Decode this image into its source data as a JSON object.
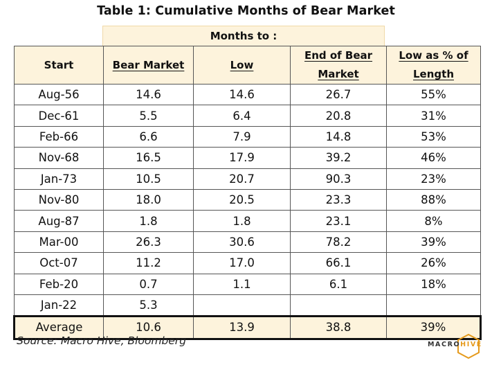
{
  "title": "Table 1:  Cumulative Months of Bear Market",
  "group_header": "Months to :",
  "columns": [
    {
      "line1": "Start",
      "line2": "",
      "underline": false
    },
    {
      "line1": "Bear Market",
      "line2": "",
      "underline": true
    },
    {
      "line1": "Low",
      "line2": "",
      "underline": true
    },
    {
      "line1": "End of Bear",
      "line2": "Market",
      "underline": true
    },
    {
      "line1": "Low as % of",
      "line2": "Length",
      "underline": true
    }
  ],
  "rows": [
    [
      "Aug-56",
      "14.6",
      "14.6",
      "26.7",
      "55%"
    ],
    [
      "Dec-61",
      "5.5",
      "6.4",
      "20.8",
      "31%"
    ],
    [
      "Feb-66",
      "6.6",
      "7.9",
      "14.8",
      "53%"
    ],
    [
      "Nov-68",
      "16.5",
      "17.9",
      "39.2",
      "46%"
    ],
    [
      "Jan-73",
      "10.5",
      "20.7",
      "90.3",
      "23%"
    ],
    [
      "Nov-80",
      "18.0",
      "20.5",
      "23.3",
      "88%"
    ],
    [
      "Aug-87",
      "1.8",
      "1.8",
      "23.1",
      "8%"
    ],
    [
      "Mar-00",
      "26.3",
      "30.6",
      "78.2",
      "39%"
    ],
    [
      "Oct-07",
      "11.2",
      "17.0",
      "66.1",
      "26%"
    ],
    [
      "Feb-20",
      "0.7",
      "1.1",
      "6.1",
      "18%"
    ],
    [
      "Jan-22",
      "5.3",
      "",
      "",
      ""
    ]
  ],
  "average_row": [
    "Average",
    "10.6",
    "13.9",
    "38.8",
    "39%"
  ],
  "source": "Source: Macro Hive, Bloomberg",
  "logo": {
    "part1": "MACRO",
    "part2": "HIVE"
  },
  "colors": {
    "header_fill": "#fdf3dc",
    "logo_accent": "#e59a1c"
  }
}
